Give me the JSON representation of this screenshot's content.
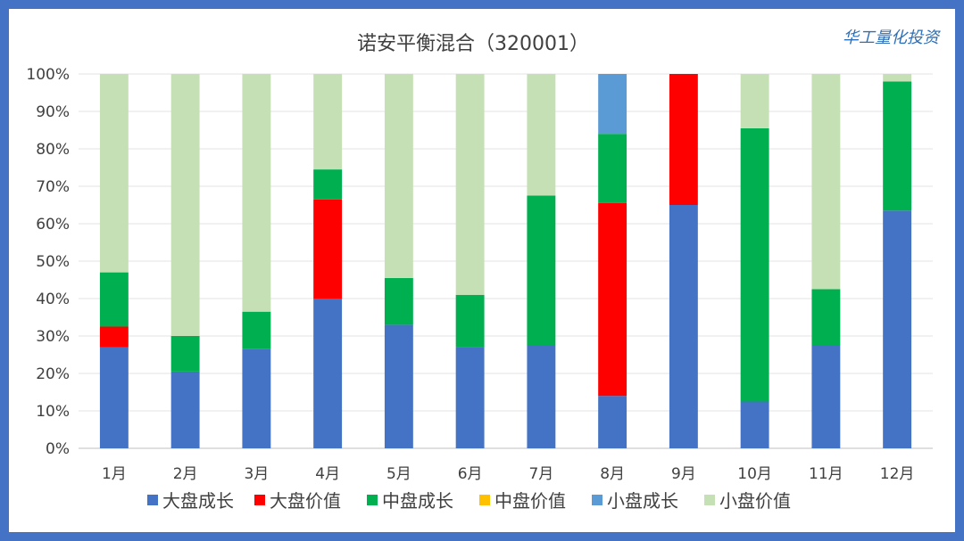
{
  "chart_data": {
    "type": "bar",
    "stacked": true,
    "title": "诺安平衡混合（320001）",
    "brand": "华工量化投资",
    "categories": [
      "1月",
      "2月",
      "3月",
      "4月",
      "5月",
      "6月",
      "7月",
      "8月",
      "9月",
      "10月",
      "11月",
      "12月"
    ],
    "y_ticks": [
      "0%",
      "10%",
      "20%",
      "30%",
      "40%",
      "50%",
      "60%",
      "70%",
      "80%",
      "90%",
      "100%"
    ],
    "ylim": [
      0,
      100
    ],
    "grid": true,
    "legend_position": "bottom",
    "series": [
      {
        "name": "大盘成长",
        "color": "#4472C4",
        "values": [
          27,
          20.5,
          26.5,
          40,
          33,
          27,
          27.5,
          14,
          65,
          12.5,
          27.5,
          63.5
        ]
      },
      {
        "name": "大盘价值",
        "color": "#FF0000",
        "values": [
          5.5,
          0,
          0,
          26.5,
          0,
          0,
          0,
          51.5,
          35,
          0,
          0,
          0
        ]
      },
      {
        "name": "中盘成长",
        "color": "#00B050",
        "values": [
          14.5,
          9.5,
          10,
          8,
          12.5,
          14,
          40,
          18.5,
          0,
          73,
          15,
          34.5
        ]
      },
      {
        "name": "中盘价值",
        "color": "#FFC000",
        "values": [
          0,
          0,
          0,
          0,
          0,
          0,
          0,
          0,
          0,
          0,
          0,
          0
        ]
      },
      {
        "name": "小盘成长",
        "color": "#5B9BD5",
        "values": [
          0,
          0,
          0,
          0,
          0,
          0,
          0,
          16,
          0,
          0,
          0,
          0
        ]
      },
      {
        "name": "小盘价值",
        "color": "#C5E0B4",
        "values": [
          53,
          70,
          63.5,
          25.5,
          54.5,
          59,
          32.5,
          0,
          0,
          14.5,
          57.5,
          2
        ]
      }
    ]
  }
}
